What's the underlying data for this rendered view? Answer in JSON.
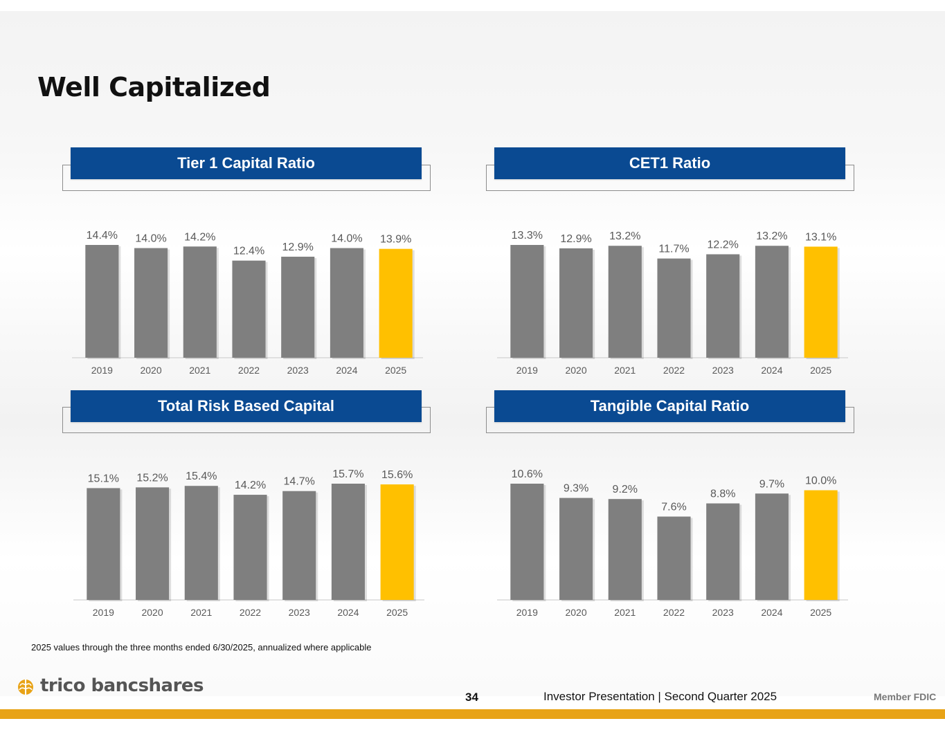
{
  "page": {
    "title": "Well Capitalized",
    "footnote": "2025 values through the three months ended 6/30/2025, annualized where applicable",
    "logo_text": "trico bancshares",
    "page_number": "34",
    "footer_text": "Investor Presentation  |  Second Quarter 2025",
    "member_text": "Member FDIC"
  },
  "colors": {
    "header_blue": "#0a4a92",
    "bar_gray": "#7f7f7f",
    "highlight_gold": "#ffc000",
    "label_gray": "#595959",
    "footer_gold": "#e8a317"
  },
  "chart_data": [
    {
      "type": "bar",
      "title": "Tier 1 Capital Ratio",
      "categories": [
        "2019",
        "2020",
        "2021",
        "2022",
        "2023",
        "2024",
        "2025"
      ],
      "values": [
        14.4,
        14.0,
        14.2,
        12.4,
        12.9,
        14.0,
        13.9
      ],
      "labels": [
        "14.4%",
        "14.0%",
        "14.2%",
        "12.4%",
        "12.9%",
        "14.0%",
        "13.9%"
      ],
      "highlight_index": 6,
      "ylim": [
        0,
        14.4
      ]
    },
    {
      "type": "bar",
      "title": "CET1 Ratio",
      "categories": [
        "2019",
        "2020",
        "2021",
        "2022",
        "2023",
        "2024",
        "2025"
      ],
      "values": [
        13.3,
        12.9,
        13.2,
        11.7,
        12.2,
        13.2,
        13.1
      ],
      "labels": [
        "13.3%",
        "12.9%",
        "13.2%",
        "11.7%",
        "12.2%",
        "13.2%",
        "13.1%"
      ],
      "highlight_index": 6,
      "ylim": [
        0,
        13.3
      ]
    },
    {
      "type": "bar",
      "title": "Total Risk Based Capital",
      "categories": [
        "2019",
        "2020",
        "2021",
        "2022",
        "2023",
        "2024",
        "2025"
      ],
      "values": [
        15.1,
        15.2,
        15.4,
        14.2,
        14.7,
        15.7,
        15.6
      ],
      "labels": [
        "15.1%",
        "15.2%",
        "15.4%",
        "14.2%",
        "14.7%",
        "15.7%",
        "15.6%"
      ],
      "highlight_index": 6,
      "ylim": [
        0,
        15.7
      ]
    },
    {
      "type": "bar",
      "title": "Tangible Capital Ratio",
      "categories": [
        "2019",
        "2020",
        "2021",
        "2022",
        "2023",
        "2024",
        "2025"
      ],
      "values": [
        10.6,
        9.3,
        9.2,
        7.6,
        8.8,
        9.7,
        10.0
      ],
      "labels": [
        "10.6%",
        "9.3%",
        "9.2%",
        "7.6%",
        "8.8%",
        "9.7%",
        "10.0%"
      ],
      "highlight_index": 6,
      "ylim": [
        0,
        10.6
      ]
    }
  ]
}
